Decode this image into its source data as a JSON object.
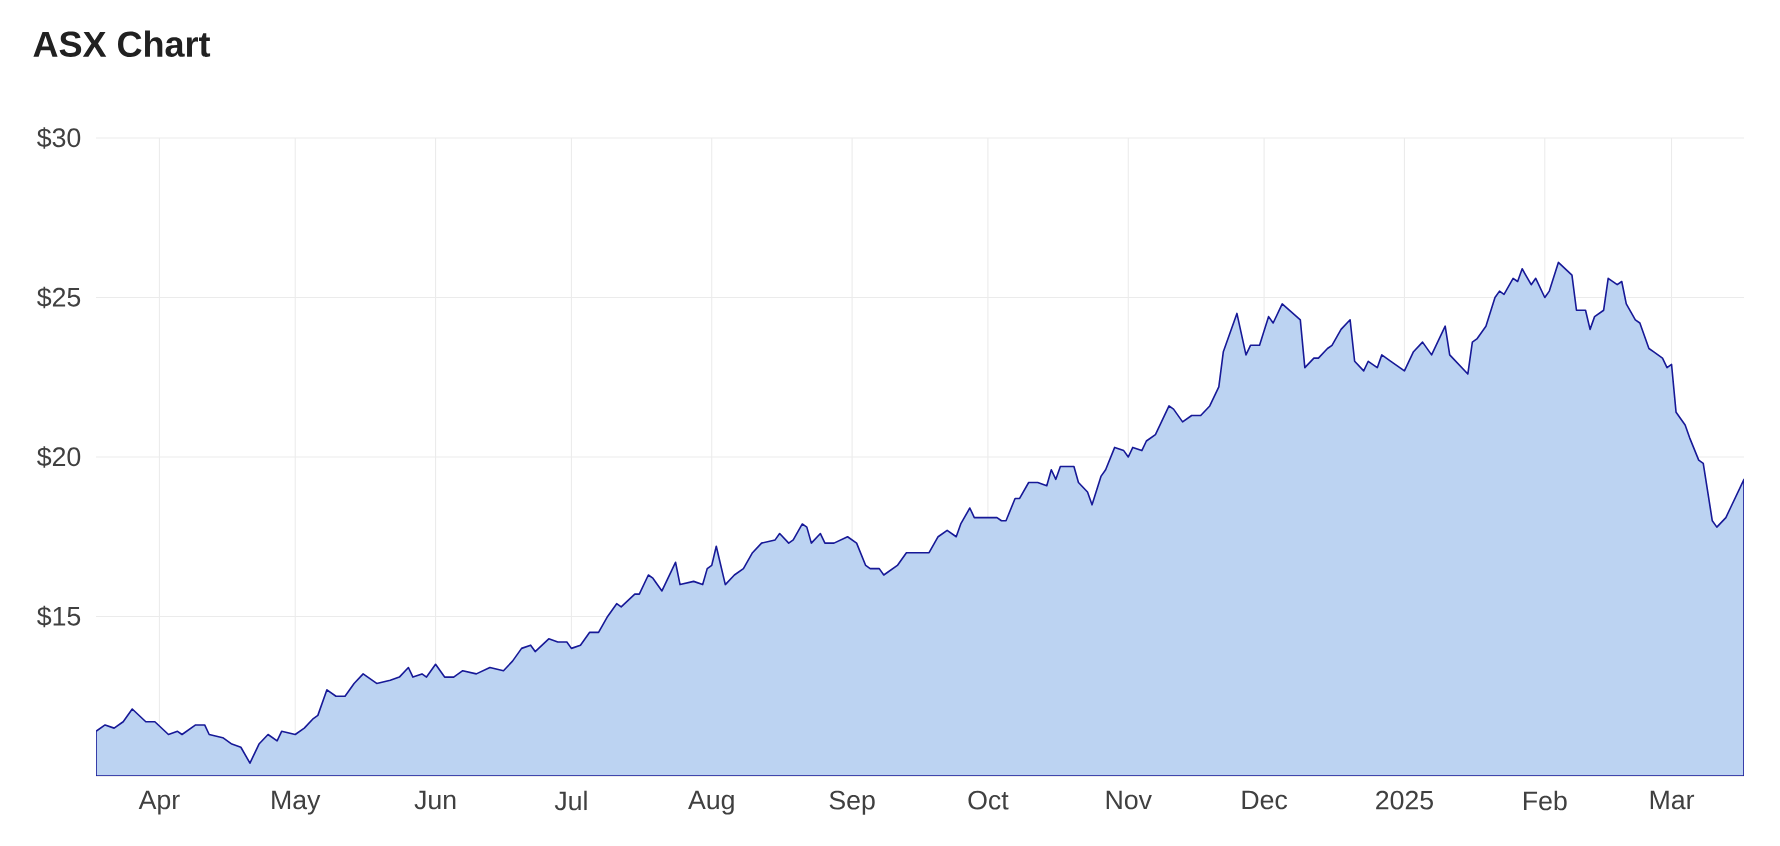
{
  "chart_data": {
    "type": "area",
    "title": "ASX Chart",
    "color": "#bcd3f2",
    "grid": true,
    "xlim": [
      "2024-03-18",
      "2025-03-17"
    ],
    "xticks": [
      {
        "value": "2024-04-01",
        "label": "Apr"
      },
      {
        "value": "2024-05-01",
        "label": "May"
      },
      {
        "value": "2024-06-01",
        "label": "Jun"
      },
      {
        "value": "2024-07-01",
        "label": "Jul"
      },
      {
        "value": "2024-08-01",
        "label": "Aug"
      },
      {
        "value": "2024-09-01",
        "label": "Sep"
      },
      {
        "value": "2024-10-01",
        "label": "Oct"
      },
      {
        "value": "2024-11-01",
        "label": "Nov"
      },
      {
        "value": "2024-12-01",
        "label": "Dec"
      },
      {
        "value": "2025-01-01",
        "label": "2025"
      },
      {
        "value": "2025-02-01",
        "label": "Feb"
      },
      {
        "value": "2025-03-01",
        "label": "Mar"
      }
    ],
    "ylim": [
      10,
      30
    ],
    "yticks": [
      {
        "value": 15,
        "label": "$15"
      },
      {
        "value": 20,
        "label": "$20"
      },
      {
        "value": 25,
        "label": "$25"
      },
      {
        "value": 30,
        "label": "$30"
      }
    ],
    "x": [
      "2024-03-18",
      "2024-03-20",
      "2024-03-22",
      "2024-03-24",
      "2024-03-26",
      "2024-03-29",
      "2024-03-31",
      "2024-04-03",
      "2024-04-05",
      "2024-04-06",
      "2024-04-09",
      "2024-04-11",
      "2024-04-12",
      "2024-04-15",
      "2024-04-17",
      "2024-04-19",
      "2024-04-21",
      "2024-04-23",
      "2024-04-25",
      "2024-04-27",
      "2024-04-28",
      "2024-05-01",
      "2024-05-03",
      "2024-05-05",
      "2024-05-06",
      "2024-05-08",
      "2024-05-10",
      "2024-05-12",
      "2024-05-14",
      "2024-05-16",
      "2024-05-19",
      "2024-05-22",
      "2024-05-24",
      "2024-05-26",
      "2024-05-27",
      "2024-05-29",
      "2024-05-30",
      "2024-06-01",
      "2024-06-03",
      "2024-06-05",
      "2024-06-07",
      "2024-06-10",
      "2024-06-13",
      "2024-06-16",
      "2024-06-18",
      "2024-06-20",
      "2024-06-22",
      "2024-06-23",
      "2024-06-26",
      "2024-06-28",
      "2024-06-30",
      "2024-07-01",
      "2024-07-03",
      "2024-07-05",
      "2024-07-07",
      "2024-07-09",
      "2024-07-11",
      "2024-07-12",
      "2024-07-15",
      "2024-07-16",
      "2024-07-18",
      "2024-07-19",
      "2024-07-21",
      "2024-07-23",
      "2024-07-24",
      "2024-07-25",
      "2024-07-28",
      "2024-07-30",
      "2024-07-31",
      "2024-08-01",
      "2024-08-02",
      "2024-08-04",
      "2024-08-06",
      "2024-08-08",
      "2024-08-10",
      "2024-08-12",
      "2024-08-15",
      "2024-08-16",
      "2024-08-18",
      "2024-08-19",
      "2024-08-21",
      "2024-08-22",
      "2024-08-23",
      "2024-08-25",
      "2024-08-26",
      "2024-08-28",
      "2024-08-31",
      "2024-09-02",
      "2024-09-04",
      "2024-09-05",
      "2024-09-07",
      "2024-09-08",
      "2024-09-10",
      "2024-09-11",
      "2024-09-13",
      "2024-09-15",
      "2024-09-18",
      "2024-09-20",
      "2024-09-22",
      "2024-09-24",
      "2024-09-25",
      "2024-09-27",
      "2024-09-28",
      "2024-09-30",
      "2024-10-03",
      "2024-10-04",
      "2024-10-05",
      "2024-10-07",
      "2024-10-08",
      "2024-10-10",
      "2024-10-12",
      "2024-10-14",
      "2024-10-15",
      "2024-10-16",
      "2024-10-17",
      "2024-10-20",
      "2024-10-21",
      "2024-10-23",
      "2024-10-24",
      "2024-10-26",
      "2024-10-27",
      "2024-10-29",
      "2024-10-31",
      "2024-11-01",
      "2024-11-02",
      "2024-11-04",
      "2024-11-05",
      "2024-11-07",
      "2024-11-10",
      "2024-11-11",
      "2024-11-13",
      "2024-11-15",
      "2024-11-17",
      "2024-11-19",
      "2024-11-21",
      "2024-11-22",
      "2024-11-25",
      "2024-11-27",
      "2024-11-28",
      "2024-11-30",
      "2024-12-02",
      "2024-12-03",
      "2024-12-05",
      "2024-12-09",
      "2024-12-10",
      "2024-12-12",
      "2024-12-13",
      "2024-12-15",
      "2024-12-16",
      "2024-12-18",
      "2024-12-20",
      "2024-12-21",
      "2024-12-23",
      "2024-12-24",
      "2024-12-26",
      "2024-12-27",
      "2024-12-29",
      "2025-01-01",
      "2025-01-03",
      "2025-01-05",
      "2025-01-07",
      "2025-01-10",
      "2025-01-11",
      "2025-01-15",
      "2025-01-16",
      "2025-01-17",
      "2025-01-19",
      "2025-01-21",
      "2025-01-22",
      "2025-01-23",
      "2025-01-25",
      "2025-01-26",
      "2025-01-27",
      "2025-01-29",
      "2025-01-30",
      "2025-02-01",
      "2025-02-02",
      "2025-02-04",
      "2025-02-07",
      "2025-02-08",
      "2025-02-10",
      "2025-02-11",
      "2025-02-12",
      "2025-02-14",
      "2025-02-15",
      "2025-02-17",
      "2025-02-18",
      "2025-02-19",
      "2025-02-21",
      "2025-02-22",
      "2025-02-24",
      "2025-02-25",
      "2025-02-27",
      "2025-02-28",
      "2025-03-01",
      "2025-03-02",
      "2025-03-04",
      "2025-03-05",
      "2025-03-07",
      "2025-03-08",
      "2025-03-10",
      "2025-03-11",
      "2025-03-13",
      "2025-03-14",
      "2025-03-17"
    ],
    "values": [
      11.4,
      11.6,
      11.5,
      11.7,
      12.1,
      11.7,
      11.7,
      11.3,
      11.4,
      11.3,
      11.6,
      11.6,
      11.3,
      11.2,
      11.0,
      10.9,
      10.4,
      11.0,
      11.3,
      11.1,
      11.4,
      11.3,
      11.5,
      11.8,
      11.9,
      12.7,
      12.5,
      12.5,
      12.9,
      13.2,
      12.9,
      13.0,
      13.1,
      13.4,
      13.1,
      13.2,
      13.1,
      13.5,
      13.1,
      13.1,
      13.3,
      13.2,
      13.4,
      13.3,
      13.6,
      14.0,
      14.1,
      13.9,
      14.3,
      14.2,
      14.2,
      14.0,
      14.1,
      14.5,
      14.5,
      15.0,
      15.4,
      15.3,
      15.7,
      15.7,
      16.3,
      16.2,
      15.8,
      16.4,
      16.7,
      16.0,
      16.1,
      16.0,
      16.5,
      16.6,
      17.2,
      16.0,
      16.3,
      16.5,
      17.0,
      17.3,
      17.4,
      17.6,
      17.3,
      17.4,
      17.9,
      17.8,
      17.3,
      17.6,
      17.3,
      17.3,
      17.5,
      17.3,
      16.6,
      16.5,
      16.5,
      16.3,
      16.5,
      16.6,
      17.0,
      17.0,
      17.0,
      17.5,
      17.7,
      17.5,
      17.9,
      18.4,
      18.1,
      18.1,
      18.1,
      18.0,
      18.0,
      18.7,
      18.7,
      19.2,
      19.2,
      19.1,
      19.6,
      19.3,
      19.7,
      19.7,
      19.2,
      18.9,
      18.5,
      19.4,
      19.6,
      20.3,
      20.2,
      20.0,
      20.3,
      20.2,
      20.5,
      20.7,
      21.6,
      21.5,
      21.1,
      21.3,
      21.3,
      21.6,
      22.2,
      23.3,
      24.5,
      23.2,
      23.5,
      23.5,
      24.4,
      24.2,
      24.8,
      24.3,
      22.8,
      23.1,
      23.1,
      23.4,
      23.5,
      24.0,
      24.3,
      23.0,
      22.7,
      23.0,
      22.8,
      23.2,
      23.0,
      22.7,
      23.3,
      23.6,
      23.2,
      24.1,
      23.2,
      22.6,
      23.6,
      23.7,
      24.1,
      25.0,
      25.2,
      25.1,
      25.6,
      25.5,
      25.9,
      25.4,
      25.6,
      25.0,
      25.2,
      26.1,
      25.7,
      24.6,
      24.6,
      24.0,
      24.4,
      24.6,
      25.6,
      25.4,
      25.5,
      24.8,
      24.3,
      24.2,
      23.4,
      23.3,
      23.1,
      22.8,
      22.9,
      21.4,
      21.0,
      20.6,
      19.9,
      19.8,
      18.0,
      17.8,
      18.1,
      18.4,
      19.3
    ]
  }
}
